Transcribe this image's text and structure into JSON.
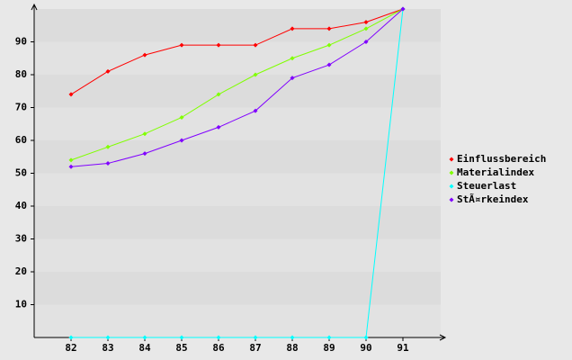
{
  "chart_data": {
    "type": "line",
    "categories": [
      "82",
      "83",
      "84",
      "85",
      "86",
      "87",
      "88",
      "89",
      "90",
      "91"
    ],
    "series": [
      {
        "name": "Einflussbereich",
        "color": "#ff0000",
        "values": [
          74,
          81,
          86,
          89,
          89,
          89,
          94,
          94,
          96,
          100
        ]
      },
      {
        "name": "Materialindex",
        "color": "#80ff00",
        "values": [
          54,
          58,
          62,
          67,
          74,
          80,
          85,
          89,
          94,
          100
        ]
      },
      {
        "name": "Steuerlast",
        "color": "#00ffff",
        "values": [
          0,
          0,
          0,
          0,
          0,
          0,
          0,
          0,
          0,
          100
        ]
      },
      {
        "name": "StÃ¤rkeindex",
        "color": "#8000ff",
        "values": [
          52,
          53,
          56,
          60,
          64,
          69,
          79,
          83,
          90,
          100
        ]
      }
    ],
    "ylim": [
      0,
      100
    ],
    "yticks": [
      10,
      20,
      30,
      40,
      50,
      60,
      70,
      80,
      90
    ],
    "grid": true,
    "legend": "right"
  }
}
